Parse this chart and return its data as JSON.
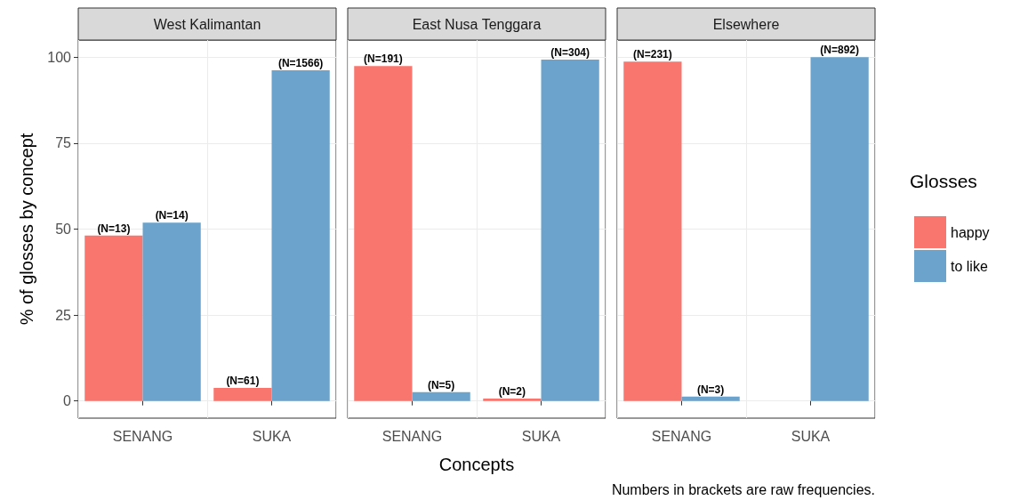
{
  "chart_data": [
    {
      "type": "bar",
      "title": "West Kalimantan",
      "ylabel": "% of glosses by concept",
      "categories": [
        "SENANG",
        "SUKA"
      ],
      "ylim": [
        -5,
        105
      ],
      "yticks": [
        0,
        25,
        50,
        75,
        100
      ],
      "grid": true,
      "legend": false,
      "series": [
        {
          "color": "#f8766d",
          "values": [
            48.1,
            3.8
          ]
        },
        {
          "color": "#6ca3cc",
          "values": [
            51.9,
            96.2
          ]
        }
      ],
      "annotations": [
        {
          "text": "(N=13)",
          "x": "SENANG",
          "y": 48.1
        },
        {
          "text": "(N=61)",
          "x": "SUKA",
          "y": 3.8
        },
        {
          "text": "(N=14)",
          "x": "SENANG",
          "y": 51.9
        },
        {
          "text": "(N=1566)",
          "x": "SUKA",
          "y": 96.2
        }
      ]
    },
    {
      "type": "bar",
      "title": "East Nusa Tenggara",
      "xlabel": "Concepts",
      "categories": [
        "SENANG",
        "SUKA"
      ],
      "ylim": [
        -5,
        105
      ],
      "yticks": [
        0,
        25,
        50,
        75,
        100
      ],
      "grid": true,
      "legend": false,
      "tick_labels": "x",
      "series": [
        {
          "color": "#f8766d",
          "values": [
            97.4,
            0.7
          ]
        },
        {
          "color": "#6ca3cc",
          "values": [
            2.6,
            99.3
          ]
        }
      ],
      "annotations": [
        {
          "text": "(N=191)",
          "x": "SENANG",
          "y": 97.4
        },
        {
          "text": "(N=2)",
          "x": "SUKA",
          "y": 0.7
        },
        {
          "text": "(N=5)",
          "x": "SENANG",
          "y": 2.6
        },
        {
          "text": "(N=304)",
          "x": "SUKA",
          "y": 99.3
        }
      ]
    },
    {
      "type": "bar",
      "title": "Elsewhere",
      "categories": [
        "SENANG",
        "SUKA"
      ],
      "ylim": [
        -5,
        105
      ],
      "yticks": [
        0,
        25,
        50,
        75,
        100
      ],
      "grid": true,
      "legend": "right",
      "legend_title": "Glosses",
      "tick_labels": "x",
      "series": [
        {
          "name": "happy",
          "color": "#f8766d",
          "values": [
            98.7,
            null
          ]
        },
        {
          "name": "to like",
          "color": "#6ca3cc",
          "values": [
            1.3,
            100
          ]
        }
      ],
      "annotations": [
        "Numbers in brackets are raw frequencies.",
        {
          "text": "(N=231)",
          "x": "SENANG",
          "y": 98.7
        },
        {
          "text": "(N=3)",
          "x": "SENANG",
          "y": 1.3
        },
        {
          "text": "(N=892)",
          "x": "SUKA",
          "y": 100
        }
      ]
    }
  ]
}
